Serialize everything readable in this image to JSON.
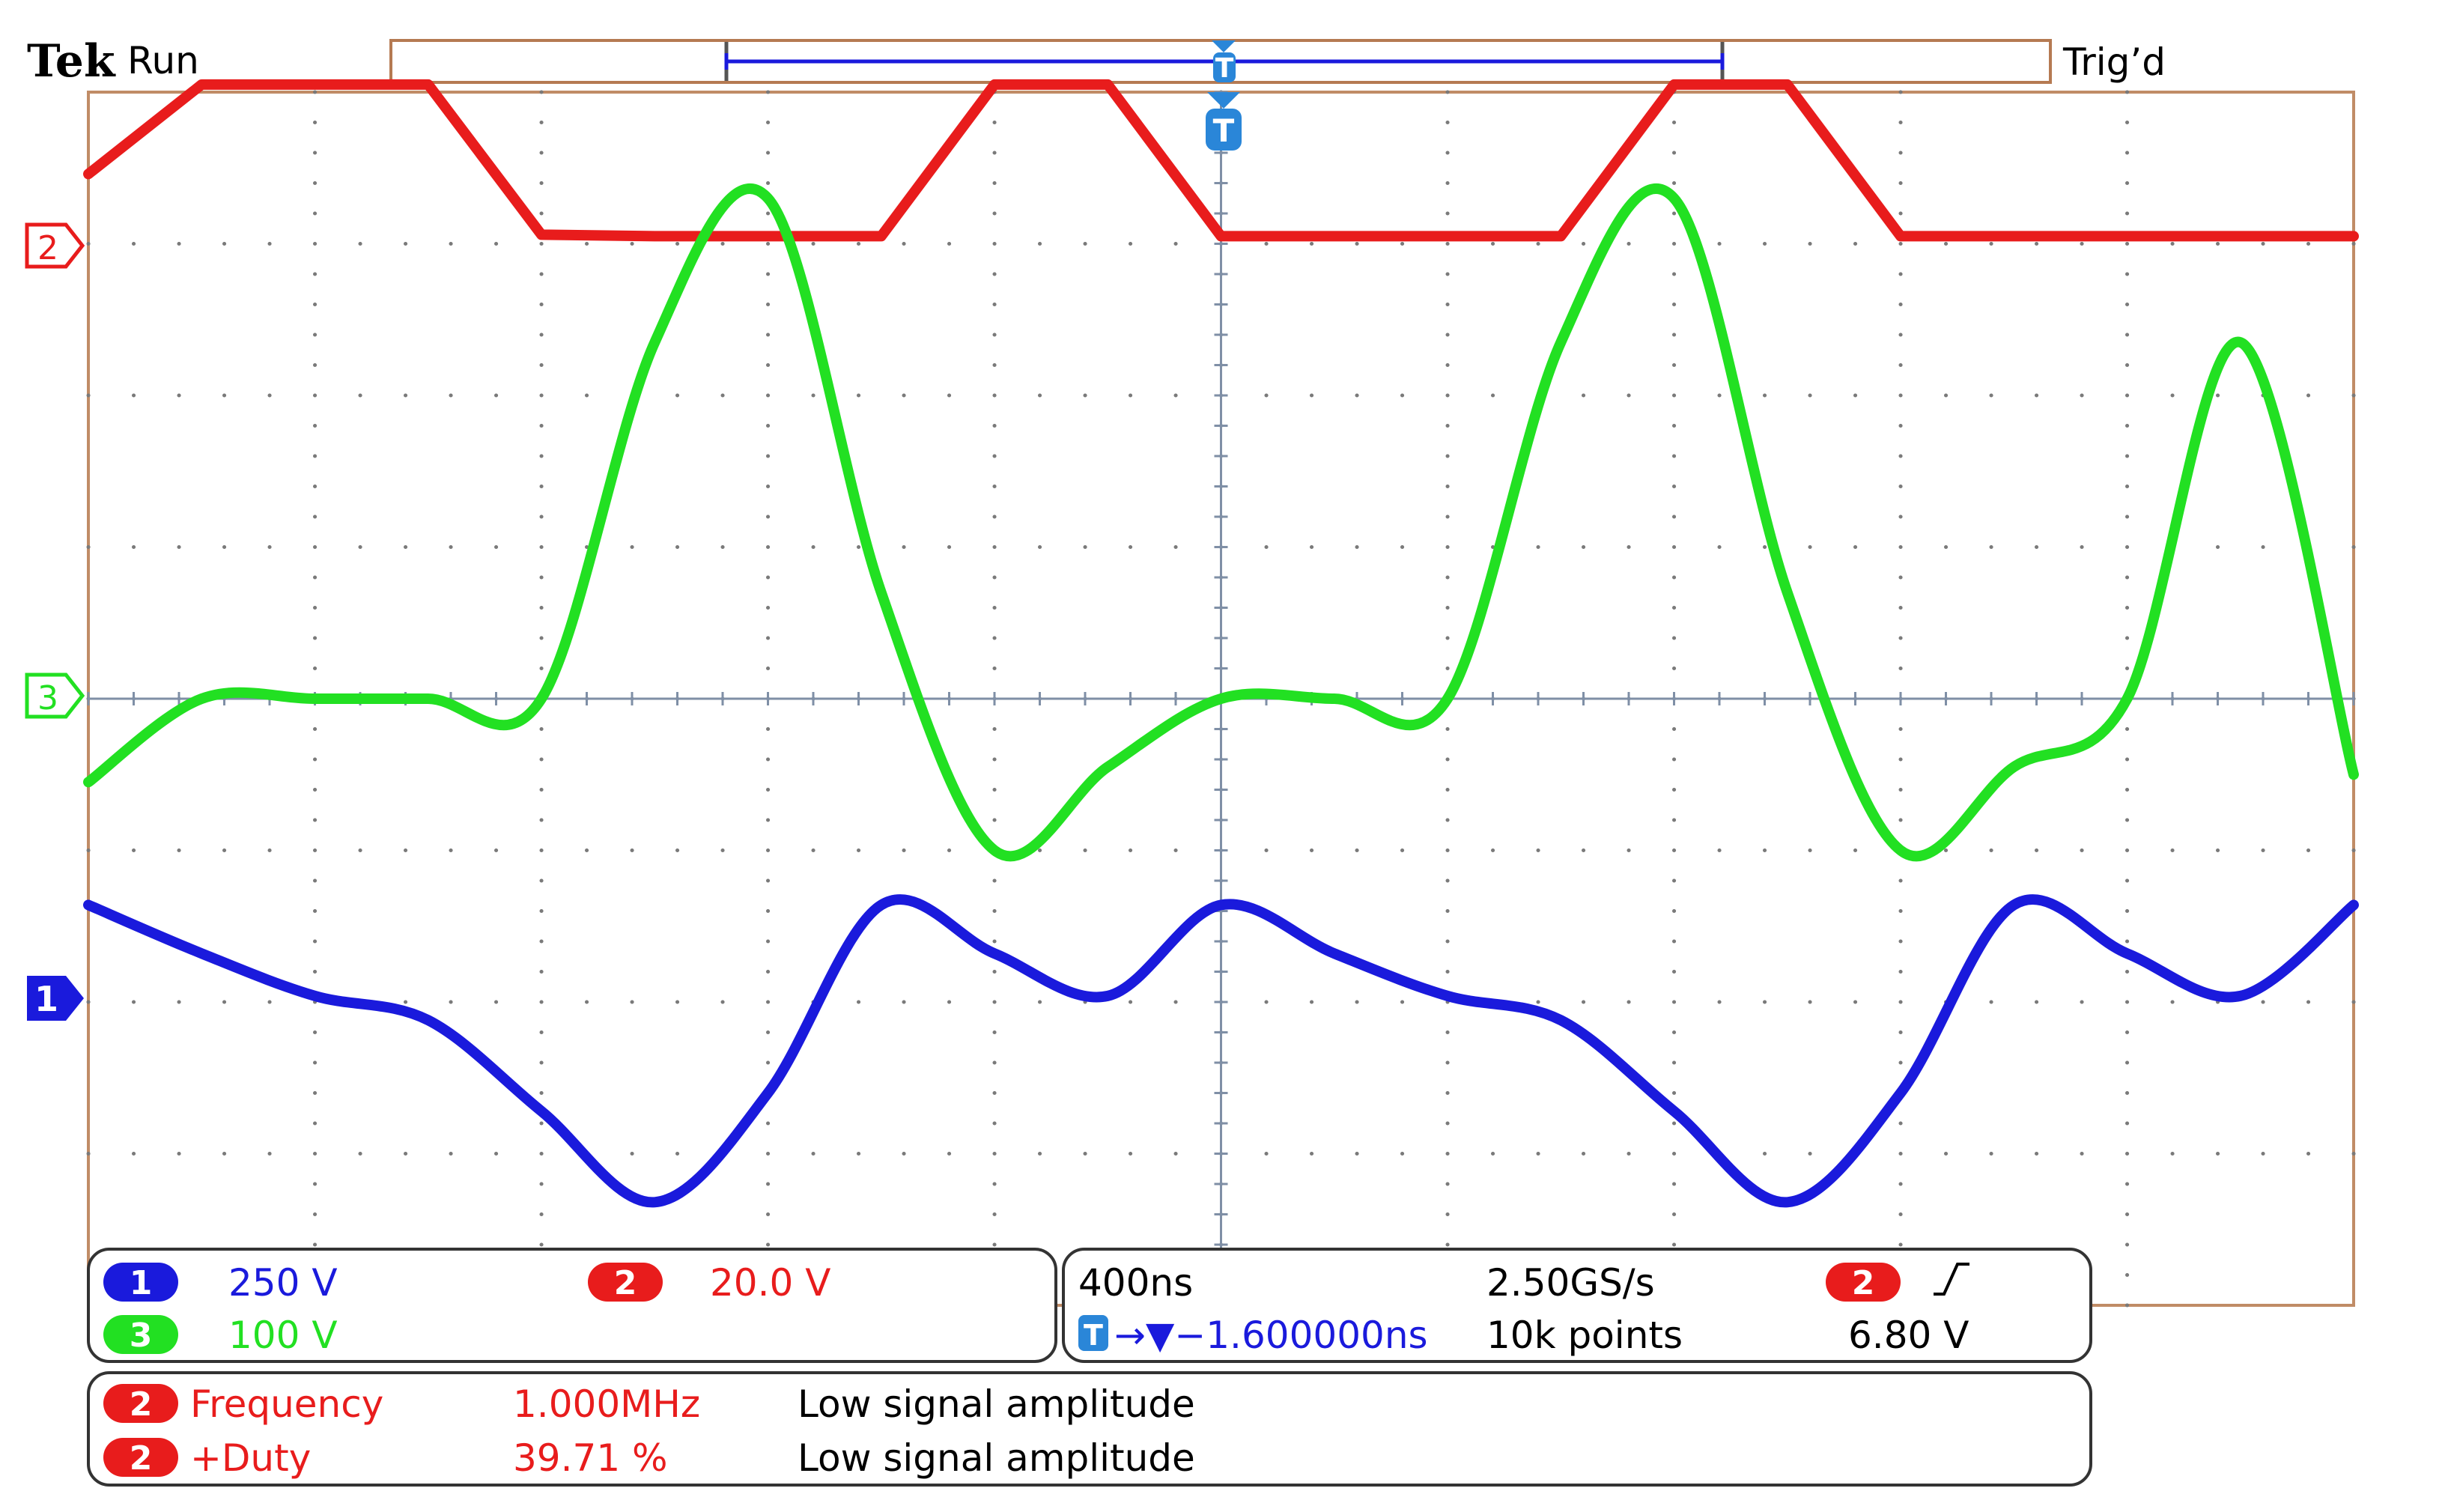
{
  "header": {
    "brand": "Tek",
    "run_state": "Run",
    "trigger_state": "Trig’d",
    "trigger_marker": "T"
  },
  "channels": {
    "ch1": {
      "number": "1",
      "scale": "250 V",
      "color": "#1a1adc"
    },
    "ch2": {
      "number": "2",
      "scale": "20.0 V",
      "color": "#e81c1c"
    },
    "ch3": {
      "number": "3",
      "scale": "100 V",
      "color": "#22e022"
    }
  },
  "timebase": {
    "horizontal_scale": "400ns",
    "sample_rate": "2.50GS/s",
    "record_length": "10k points",
    "trigger_delay": "→▼−1.600000ns",
    "trigger_source": "2",
    "trigger_slope_icon": "rising-edge-icon",
    "trigger_level": "6.80 V"
  },
  "measurements": [
    {
      "channel": "2",
      "name": "Frequency",
      "value": "1.000MHz",
      "status": "Low signal amplitude"
    },
    {
      "channel": "2",
      "name": "+Duty",
      "value": "39.71 %",
      "status": "Low signal amplitude"
    }
  ],
  "chart_data": {
    "type": "line",
    "title": "",
    "xlabel": "",
    "ylabel": "",
    "x_unit": "ns",
    "xlim": [
      -2000,
      2000
    ],
    "ylim_divisions": [
      -4,
      4
    ],
    "grid": true,
    "horizontal_divisions": 10,
    "vertical_divisions": 8,
    "x": [
      -2000,
      -1800,
      -1600,
      -1400,
      -1200,
      -1000,
      -800,
      -600,
      -400,
      -200,
      0,
      200,
      400,
      600,
      800,
      1000,
      1200,
      1400,
      1600,
      1800,
      2000
    ],
    "series": [
      {
        "channel": "2",
        "color": "#e81c1c",
        "volts_per_div": 20.0,
        "offset_div": 3.05,
        "values": [
          8.2,
          20.0,
          20.0,
          20.0,
          0.2,
          0.0,
          0.0,
          0.0,
          20.0,
          20.0,
          0.0,
          0.0,
          0.0,
          0.0,
          20.0,
          20.0,
          0.0,
          0.0,
          0.0,
          0.0,
          0.0
        ]
      },
      {
        "channel": "3",
        "color": "#22e022",
        "volts_per_div": 100,
        "offset_div": 0,
        "values": [
          -55,
          0,
          0,
          0,
          0,
          235,
          330,
          70,
          -100,
          -45,
          0,
          0,
          0,
          235,
          330,
          70,
          -100,
          -45,
          0,
          235,
          -50
        ]
      },
      {
        "channel": "1",
        "color": "#1a1adc",
        "volts_per_div": 250,
        "offset_div": -2.0,
        "values": [
          160,
          80,
          10,
          -30,
          -180,
          -330,
          -150,
          160,
          80,
          10,
          160,
          80,
          10,
          -30,
          -180,
          -330,
          -150,
          160,
          80,
          10,
          160
        ]
      }
    ]
  }
}
